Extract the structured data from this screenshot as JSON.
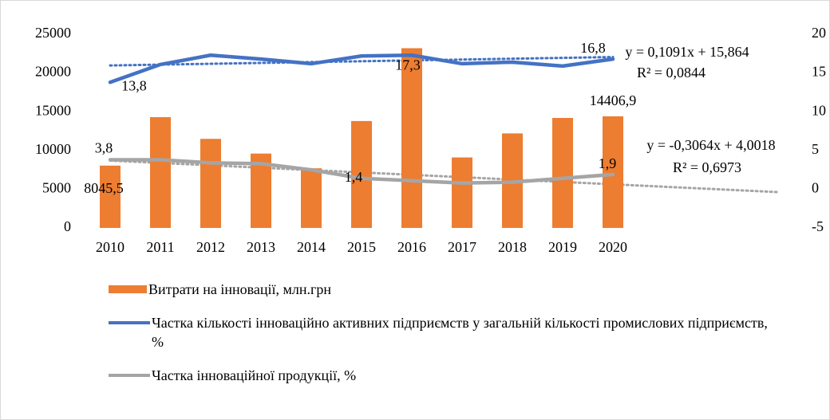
{
  "chart_data": {
    "type": "bar_line",
    "categories": [
      "2010",
      "2011",
      "2012",
      "2013",
      "2014",
      "2015",
      "2016",
      "2017",
      "2018",
      "2019",
      "2020"
    ],
    "series": [
      {
        "name": "Витрати на інновації, млн.грн",
        "type": "bar",
        "color": "#ed7d31",
        "values": [
          8045.5,
          14300,
          11500,
          9600,
          7700,
          13800,
          23200,
          9100,
          12200,
          14200,
          14406.9
        ],
        "value_labels": [
          "8045,5",
          null,
          null,
          null,
          null,
          null,
          null,
          null,
          null,
          null,
          "14406,9"
        ]
      },
      {
        "name": "Частка кількості інноваційно активних підприємств у загальній кількості промислових підприємств, %",
        "type": "line",
        "axis": "y2",
        "color": "#4472c4",
        "values": [
          13.8,
          16.1,
          17.3,
          16.8,
          16.2,
          17.2,
          17.3,
          16.2,
          16.4,
          15.9,
          16.8
        ],
        "value_labels": [
          "13,8",
          null,
          null,
          null,
          null,
          null,
          "17,3",
          null,
          null,
          null,
          "16,8"
        ]
      },
      {
        "name": "Частка інноваційної продукції, %",
        "type": "line",
        "axis": "y2",
        "color": "#a5a5a5",
        "values": [
          3.8,
          3.8,
          3.4,
          3.3,
          2.5,
          1.4,
          1.1,
          0.8,
          0.9,
          1.4,
          1.9
        ],
        "value_labels": [
          "3,8",
          null,
          null,
          null,
          null,
          "1,4",
          null,
          null,
          null,
          null,
          "1,9"
        ]
      }
    ],
    "trendlines": [
      {
        "series": 1,
        "slope": 0.1091,
        "intercept": 15.864,
        "forecast": 0,
        "equation": "y = 0,1091x + 15,864",
        "r2": "R² = 0,0844"
      },
      {
        "series": 2,
        "slope": -0.3064,
        "intercept": 4.0018,
        "forecast": 3,
        "equation": "y = -0,3064x + 4,0018",
        "r2": "R² = 0,6973"
      }
    ],
    "ylim": [
      0,
      25000
    ],
    "yticks": [
      0,
      5000,
      10000,
      15000,
      20000,
      25000
    ],
    "y2lim": [
      -5,
      20
    ],
    "y2ticks": [
      -5,
      0,
      5,
      10,
      15,
      20
    ],
    "grid": false
  }
}
